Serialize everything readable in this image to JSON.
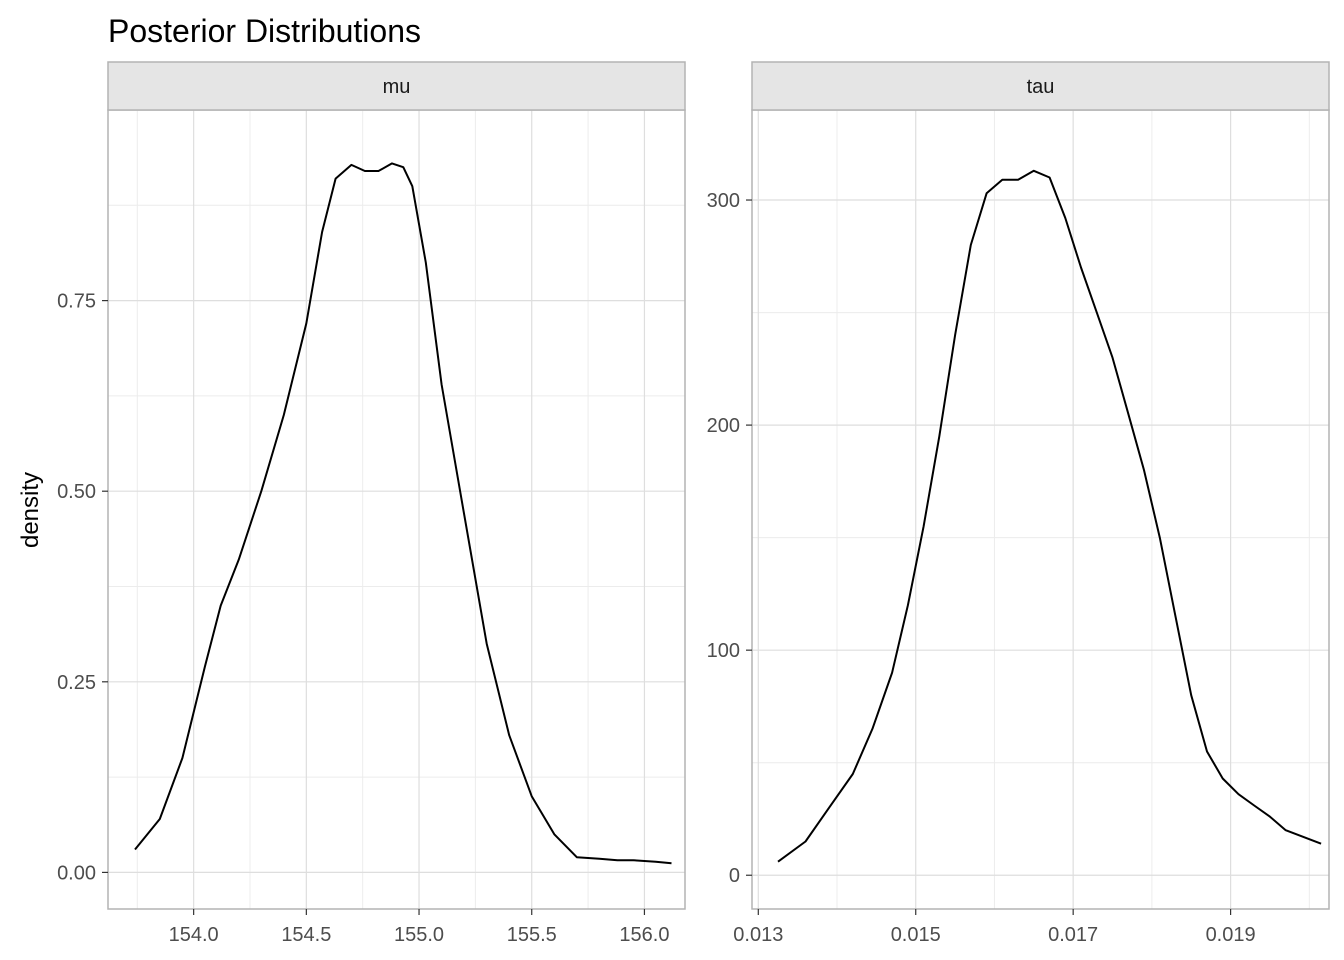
{
  "title": "Posterior Distributions",
  "ylabel": "density",
  "colors": {
    "background": "#ffffff",
    "panel_border": "#b3b3b3",
    "strip_fill": "#e5e5e5",
    "grid_major": "#dedede",
    "grid_minor": "#ececec",
    "line": "#000000",
    "tick_text": "#4d4d4d"
  },
  "chart_data": [
    {
      "type": "line",
      "facet": "mu",
      "xlim": [
        153.62,
        156.18
      ],
      "ylim": [
        -0.048,
        1.0
      ],
      "xticks": [
        154.0,
        154.5,
        155.0,
        155.5,
        156.0
      ],
      "xtick_labels": [
        "154.0",
        "154.5",
        "155.0",
        "155.5",
        "156.0"
      ],
      "yticks": [
        0.0,
        0.25,
        0.5,
        0.75
      ],
      "ytick_labels": [
        "0.00",
        "0.25",
        "0.50",
        "0.75"
      ],
      "series": [
        {
          "x": [
            153.74,
            153.85,
            153.95,
            154.05,
            154.12,
            154.2,
            154.3,
            154.4,
            154.5,
            154.57,
            154.63,
            154.7,
            154.76,
            154.82,
            154.88,
            154.93,
            154.97,
            155.03,
            155.1,
            155.2,
            155.3,
            155.4,
            155.5,
            155.6,
            155.7,
            155.8,
            155.88,
            155.95,
            156.05,
            156.12
          ],
          "y": [
            0.03,
            0.07,
            0.15,
            0.27,
            0.35,
            0.41,
            0.5,
            0.6,
            0.72,
            0.84,
            0.91,
            0.928,
            0.92,
            0.92,
            0.93,
            0.925,
            0.9,
            0.8,
            0.64,
            0.47,
            0.3,
            0.18,
            0.1,
            0.05,
            0.02,
            0.018,
            0.016,
            0.016,
            0.014,
            0.012
          ]
        }
      ]
    },
    {
      "type": "line",
      "facet": "tau",
      "xlim": [
        0.01292,
        0.02025
      ],
      "ylim": [
        -15,
        340
      ],
      "xticks": [
        0.013,
        0.015,
        0.017,
        0.019
      ],
      "xtick_labels": [
        "0.013",
        "0.015",
        "0.017",
        "0.019"
      ],
      "yticks": [
        0,
        100,
        200,
        300
      ],
      "ytick_labels": [
        "0",
        "100",
        "200",
        "300"
      ],
      "series": [
        {
          "x": [
            0.01325,
            0.0136,
            0.0139,
            0.0142,
            0.01445,
            0.0147,
            0.0149,
            0.0151,
            0.0153,
            0.0155,
            0.0157,
            0.0159,
            0.0161,
            0.0163,
            0.0165,
            0.0167,
            0.0169,
            0.0171,
            0.0173,
            0.0175,
            0.0177,
            0.0179,
            0.0181,
            0.0183,
            0.0185,
            0.0187,
            0.0189,
            0.0191,
            0.0193,
            0.0195,
            0.0197,
            0.02015
          ],
          "y": [
            6,
            15,
            30,
            45,
            65,
            90,
            120,
            155,
            195,
            240,
            280,
            303,
            309,
            309,
            313,
            310,
            292,
            270,
            250,
            230,
            205,
            180,
            150,
            115,
            80,
            55,
            43,
            36,
            31,
            26,
            20,
            14
          ]
        }
      ]
    }
  ]
}
